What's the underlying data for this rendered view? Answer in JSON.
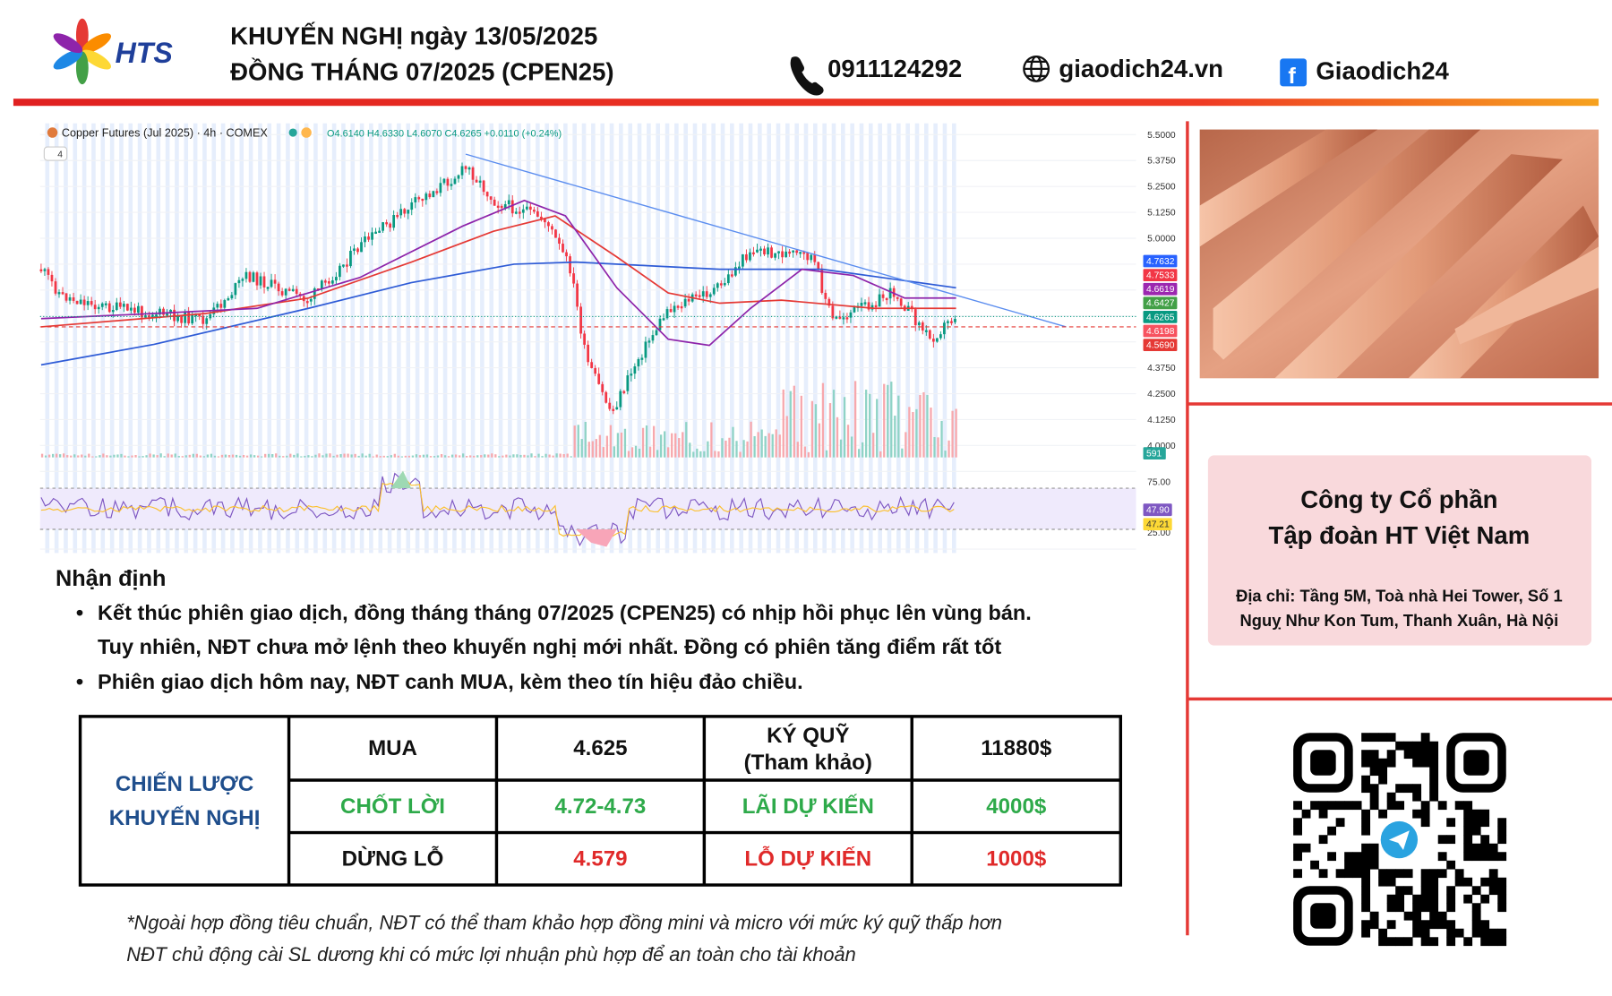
{
  "header": {
    "logo_text": "HTS",
    "title_line1": "KHUYẾN NGHỊ ngày 13/05/2025",
    "title_line2": "ĐỒNG THÁNG 07/2025 (CPEN25)",
    "phone": "0911124292",
    "website": "giaodich24.vn",
    "facebook": "Giaodich24"
  },
  "chart_image": {
    "title": "Copper Futures (Jul 2025) · 4h · COMEX",
    "ohlc": "O4.6140 H4.6330 L4.6070 C4.6265 +0.0110 (+0.24%)",
    "indicator_count": "4",
    "price_axis": [
      "5.5000",
      "5.3750",
      "5.2500",
      "5.1250",
      "5.0000",
      "4.3750",
      "4.2500",
      "4.1250",
      "4.0000"
    ],
    "price_badges": [
      {
        "label": "4.7632",
        "color": "#2962ff"
      },
      {
        "label": "4.7533",
        "color": "#f23645"
      },
      {
        "label": "4.6619",
        "color": "#9c27b0"
      },
      {
        "label": "4.6427",
        "color": "#43a047"
      },
      {
        "label": "4.6265",
        "color": "#089981"
      },
      {
        "label": "4.6198",
        "color": "#f7525f"
      },
      {
        "label": "4.5690",
        "color": "#e53935"
      }
    ],
    "volume_badge": "591",
    "rsi_axis": [
      "75.00",
      "25.00"
    ],
    "rsi_badges": [
      {
        "label": "47.90",
        "color": "#7e57c2"
      },
      {
        "label": "47.21",
        "color": "#fdd835"
      }
    ]
  },
  "analysis": {
    "heading": "Nhận định",
    "bullets": [
      [
        "Kết thúc phiên giao dịch, đồng tháng tháng 07/2025 (CPEN25) có nhịp hồi phục lên vùng bán.",
        "Tuy nhiên, NĐT chưa mở lệnh theo khuyến nghị mới nhất. Đồng có phiên tăng điểm rất tốt"
      ],
      [
        "Phiên giao dịch hôm nay, NĐT canh MUA, kèm theo tín hiệu đảo chiều."
      ]
    ]
  },
  "table": {
    "strategy_label": [
      "CHIẾN LƯỢC",
      "KHUYẾN NGHỊ"
    ],
    "rows": [
      [
        "MUA",
        "4.625",
        [
          "KÝ QUỸ",
          "(Tham khảo)"
        ],
        "11880$"
      ],
      [
        "CHỐT LỜI",
        "4.72-4.73",
        "LÃI DỰ KIẾN",
        "4000$"
      ],
      [
        "DỪNG LỖ",
        "4.579",
        "LỖ DỰ KIẾN",
        "1000$"
      ]
    ]
  },
  "footnote": [
    "*Ngoài hợp đồng tiêu chuẩn, NĐT có thể tham khảo hợp đồng mini và micro với mức ký quỹ thấp hơn",
    "NĐT chủ động cài SL dương khi có mức lợi nhuận phù hợp để an toàn cho tài khoản"
  ],
  "company": {
    "name_lines": [
      "Công ty Cổ phần",
      "Tập đoàn HT Việt Nam"
    ],
    "address_lines": [
      "Địa chỉ: Tầng 5M, Toà nhà Hei Tower, Số 1",
      "Nguỵ Như Kon Tum, Thanh Xuân, Hà Nội"
    ]
  }
}
